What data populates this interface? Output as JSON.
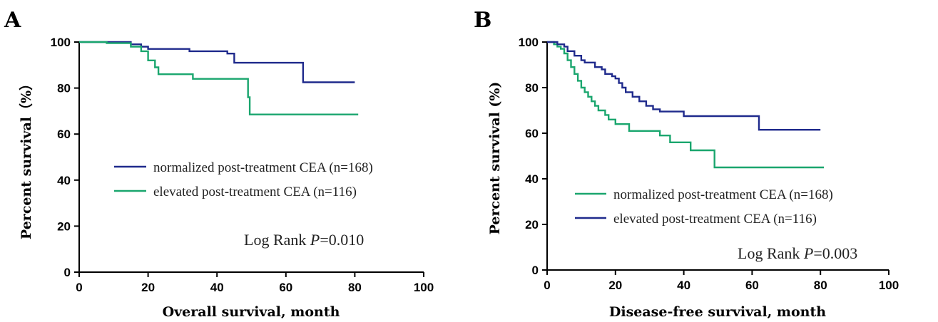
{
  "colors": {
    "blue": "#1f2a8c",
    "green": "#1aa66e"
  },
  "chart_data": [
    {
      "type": "line",
      "panel_label": "A",
      "xlabel": "Overall survival, month",
      "ylabel": "Percent survival（%）",
      "xlim": [
        0,
        100
      ],
      "ylim": [
        0,
        100
      ],
      "xticks": [
        "0",
        "20",
        "40",
        "60",
        "80",
        "100"
      ],
      "yticks": [
        "0",
        "20",
        "40",
        "60",
        "80",
        "100"
      ],
      "grid": false,
      "legend_placement": "center",
      "annotation": {
        "prefix": "Log Rank ",
        "p": "P",
        "value": "=0.010"
      },
      "series": [
        {
          "name": "normalized post-treatment CEA (n=168)",
          "color": "#1f2a8c",
          "steps": [
            [
              0,
              100
            ],
            [
              15,
              100
            ],
            [
              15,
              99
            ],
            [
              18,
              99
            ],
            [
              18,
              98
            ],
            [
              20,
              98
            ],
            [
              20,
              97
            ],
            [
              32,
              97
            ],
            [
              32,
              96
            ],
            [
              43,
              96
            ],
            [
              43,
              95
            ],
            [
              45,
              95
            ],
            [
              45,
              91
            ],
            [
              65,
              91
            ],
            [
              65,
              82.5
            ],
            [
              80,
              82.5
            ]
          ]
        },
        {
          "name": "elevated post-treatment CEA (n=116)",
          "color": "#1aa66e",
          "steps": [
            [
              0,
              100
            ],
            [
              8,
              100
            ],
            [
              8,
              99.5
            ],
            [
              15,
              99.5
            ],
            [
              15,
              98
            ],
            [
              18,
              98
            ],
            [
              18,
              96
            ],
            [
              20,
              96
            ],
            [
              20,
              92
            ],
            [
              22,
              92
            ],
            [
              22,
              89
            ],
            [
              23,
              89
            ],
            [
              23,
              86
            ],
            [
              33,
              86
            ],
            [
              33,
              84
            ],
            [
              49,
              84
            ],
            [
              49,
              76
            ],
            [
              49.5,
              76
            ],
            [
              49.5,
              68.5
            ],
            [
              81,
              68.5
            ]
          ]
        }
      ]
    },
    {
      "type": "line",
      "panel_label": "B",
      "xlabel": "Disease-free survival, month",
      "ylabel": "Percent survival (%)",
      "xlim": [
        0,
        100
      ],
      "ylim": [
        0,
        100
      ],
      "xticks": [
        "0",
        "20",
        "40",
        "60",
        "80",
        "100"
      ],
      "yticks": [
        "0",
        "20",
        "40",
        "60",
        "80",
        "100"
      ],
      "grid": false,
      "legend_placement": "bottom-left",
      "annotation": {
        "prefix": "Log Rank ",
        "p": "P",
        "value": "=0.003"
      },
      "series": [
        {
          "name": "normalized post-treatment CEA (n=168)",
          "color": "#1aa66e",
          "steps": [
            [
              0,
              100
            ],
            [
              2,
              100
            ],
            [
              2,
              99
            ],
            [
              3,
              99
            ],
            [
              3,
              98
            ],
            [
              4,
              98
            ],
            [
              4,
              97
            ],
            [
              5,
              97
            ],
            [
              5,
              95
            ],
            [
              6,
              95
            ],
            [
              6,
              92
            ],
            [
              7,
              92
            ],
            [
              7,
              89
            ],
            [
              8,
              89
            ],
            [
              8,
              86
            ],
            [
              9,
              86
            ],
            [
              9,
              83
            ],
            [
              10,
              83
            ],
            [
              10,
              80
            ],
            [
              11,
              80
            ],
            [
              11,
              78
            ],
            [
              12,
              78
            ],
            [
              12,
              76
            ],
            [
              13,
              76
            ],
            [
              13,
              74
            ],
            [
              14,
              74
            ],
            [
              14,
              72
            ],
            [
              15,
              72
            ],
            [
              15,
              70
            ],
            [
              17,
              70
            ],
            [
              17,
              68
            ],
            [
              18,
              68
            ],
            [
              18,
              66
            ],
            [
              20,
              66
            ],
            [
              20,
              64
            ],
            [
              24,
              64
            ],
            [
              24,
              61
            ],
            [
              33,
              61
            ],
            [
              33,
              59
            ],
            [
              36,
              59
            ],
            [
              36,
              56
            ],
            [
              42,
              56
            ],
            [
              42,
              52.5
            ],
            [
              49,
              52.5
            ],
            [
              49,
              45
            ],
            [
              81,
              45
            ]
          ]
        },
        {
          "name": "elevated post-treatment CEA (n=116)",
          "color": "#1f2a8c",
          "steps": [
            [
              0,
              100
            ],
            [
              3,
              100
            ],
            [
              3,
              99
            ],
            [
              5,
              99
            ],
            [
              5,
              98
            ],
            [
              6,
              98
            ],
            [
              6,
              96
            ],
            [
              8,
              96
            ],
            [
              8,
              94
            ],
            [
              10,
              94
            ],
            [
              10,
              92
            ],
            [
              11,
              92
            ],
            [
              11,
              91
            ],
            [
              14,
              91
            ],
            [
              14,
              89
            ],
            [
              16,
              89
            ],
            [
              16,
              88
            ],
            [
              17,
              88
            ],
            [
              17,
              86
            ],
            [
              19,
              86
            ],
            [
              19,
              85
            ],
            [
              20,
              85
            ],
            [
              20,
              84
            ],
            [
              21,
              84
            ],
            [
              21,
              82
            ],
            [
              22,
              82
            ],
            [
              22,
              80
            ],
            [
              23,
              80
            ],
            [
              23,
              78
            ],
            [
              25,
              78
            ],
            [
              25,
              76
            ],
            [
              27,
              76
            ],
            [
              27,
              74
            ],
            [
              29,
              74
            ],
            [
              29,
              72
            ],
            [
              31,
              72
            ],
            [
              31,
              70.5
            ],
            [
              33,
              70.5
            ],
            [
              33,
              69.5
            ],
            [
              40,
              69.5
            ],
            [
              40,
              67.5
            ],
            [
              62,
              67.5
            ],
            [
              62,
              61.5
            ],
            [
              80,
              61.5
            ]
          ]
        }
      ]
    }
  ]
}
